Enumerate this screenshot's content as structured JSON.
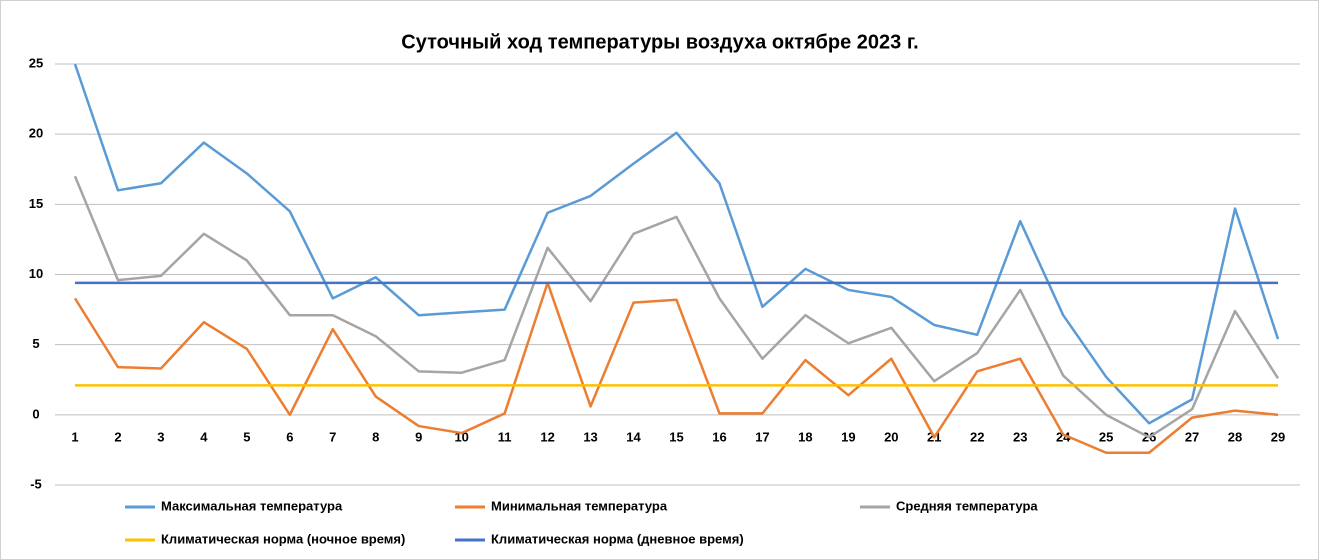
{
  "chart_data": {
    "type": "line",
    "title": "Суточный ход температуры воздуха октябре 2023 г.",
    "categories": [
      "1",
      "2",
      "3",
      "4",
      "5",
      "6",
      "7",
      "8",
      "9",
      "10",
      "11",
      "12",
      "13",
      "14",
      "15",
      "16",
      "17",
      "18",
      "19",
      "20",
      "21",
      "22",
      "23",
      "24",
      "25",
      "26",
      "27",
      "28",
      "29"
    ],
    "ylim": [
      -5,
      25
    ],
    "yticks": [
      -5,
      0,
      5,
      10,
      15,
      20,
      25
    ],
    "grid": true,
    "series": [
      {
        "name": "Максимальная температура",
        "color": "#5b9bd5",
        "values": [
          25,
          16.0,
          16.5,
          19.4,
          17.2,
          14.5,
          8.3,
          9.8,
          7.1,
          7.3,
          7.5,
          14.4,
          15.6,
          17.9,
          20.1,
          16.5,
          7.7,
          10.4,
          8.9,
          8.4,
          6.4,
          5.7,
          13.8,
          7.1,
          2.7,
          -0.6,
          1.1,
          14.7,
          5.4
        ]
      },
      {
        "name": "Минимальная температура",
        "color": "#ed7d31",
        "values": [
          8.3,
          3.4,
          3.3,
          6.6,
          4.7,
          0,
          6.1,
          1.3,
          -0.8,
          -1.3,
          0.1,
          9.4,
          0.6,
          8.0,
          8.2,
          0.1,
          0.1,
          3.9,
          1.4,
          4.0,
          -1.6,
          3.1,
          4.0,
          -1.4,
          -2.7,
          -2.7,
          -0.2,
          0.3,
          0
        ]
      },
      {
        "name": "Средняя температура",
        "color": "#a5a5a5",
        "values": [
          17.0,
          9.6,
          9.9,
          12.9,
          11.0,
          7.1,
          7.1,
          5.6,
          3.1,
          3.0,
          3.9,
          11.9,
          8.1,
          12.9,
          14.1,
          8.3,
          4.0,
          7.1,
          5.1,
          6.2,
          2.4,
          4.4,
          8.9,
          2.8,
          0,
          -1.6,
          0.4,
          7.4,
          2.6
        ]
      },
      {
        "name": "Климатическая норма (ночное время)",
        "color": "#ffc000",
        "values": [
          2.1,
          2.1,
          2.1,
          2.1,
          2.1,
          2.1,
          2.1,
          2.1,
          2.1,
          2.1,
          2.1,
          2.1,
          2.1,
          2.1,
          2.1,
          2.1,
          2.1,
          2.1,
          2.1,
          2.1,
          2.1,
          2.1,
          2.1,
          2.1,
          2.1,
          2.1,
          2.1,
          2.1,
          2.1
        ]
      },
      {
        "name": "Климатическая норма (дневное время)",
        "color": "#4472c4",
        "values": [
          9.4,
          9.4,
          9.4,
          9.4,
          9.4,
          9.4,
          9.4,
          9.4,
          9.4,
          9.4,
          9.4,
          9.4,
          9.4,
          9.4,
          9.4,
          9.4,
          9.4,
          9.4,
          9.4,
          9.4,
          9.4,
          9.4,
          9.4,
          9.4,
          9.4,
          9.4,
          9.4,
          9.4,
          9.4
        ]
      }
    ],
    "legend": "bottom"
  }
}
